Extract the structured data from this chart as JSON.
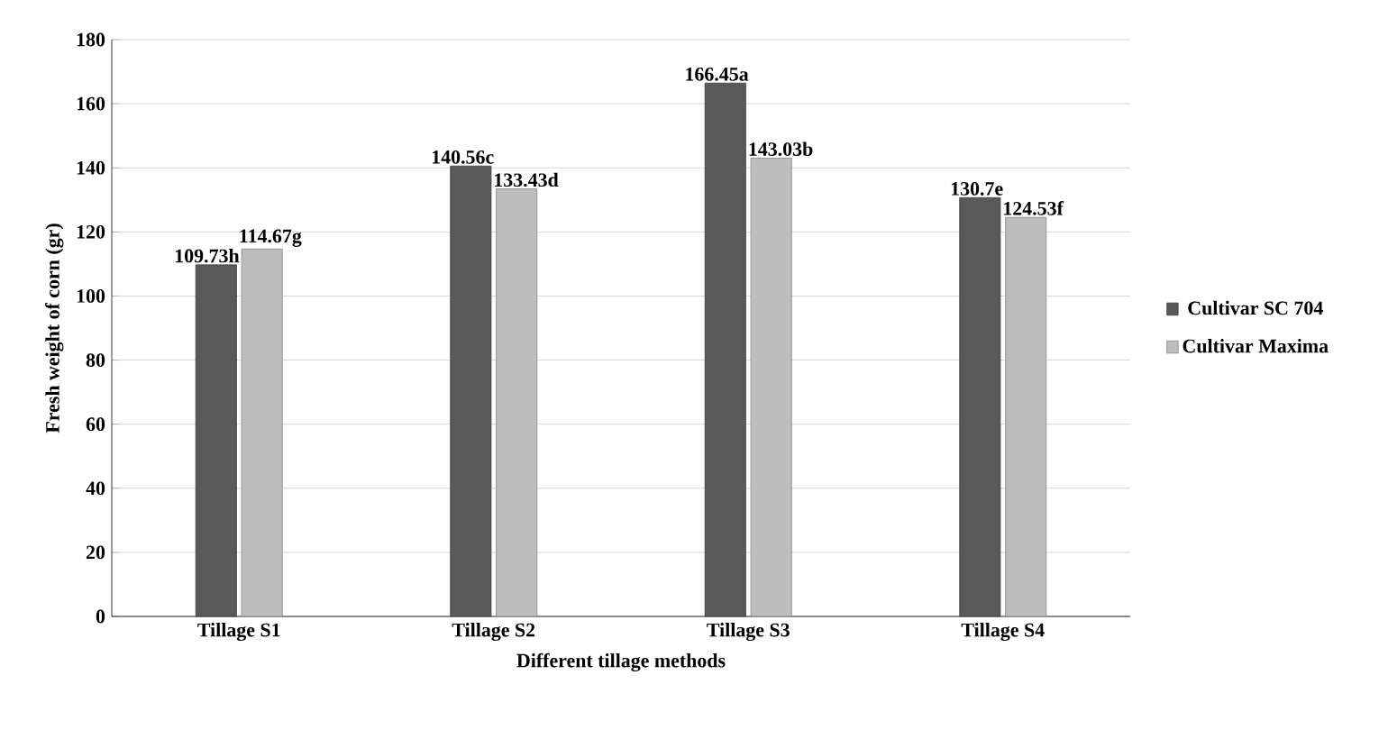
{
  "chart_data": {
    "type": "bar",
    "xlabel": "Different tillage methods",
    "ylabel": "Fresh weight of corn (gr)",
    "categories": [
      "Tillage S1",
      "Tillage S2",
      "Tillage S3",
      "Tillage S4"
    ],
    "series": [
      {
        "name": "Cultivar SC 704",
        "color": "#595959",
        "values": [
          109.73,
          140.56,
          166.45,
          130.7
        ],
        "value_labels": [
          "109.73h",
          "140.56c",
          "166.45a",
          "130.7e"
        ]
      },
      {
        "name": "Cultivar Maxima",
        "color": "#bdbdbd",
        "values": [
          114.67,
          133.43,
          143.03,
          124.53
        ],
        "value_labels": [
          "114.67g",
          "133.43d",
          "143.03b",
          "124.53f"
        ]
      }
    ],
    "ylim": [
      0,
      180
    ],
    "yticks": [
      0,
      20,
      40,
      60,
      80,
      100,
      120,
      140,
      160,
      180
    ],
    "grid": "y",
    "legend": "right"
  }
}
